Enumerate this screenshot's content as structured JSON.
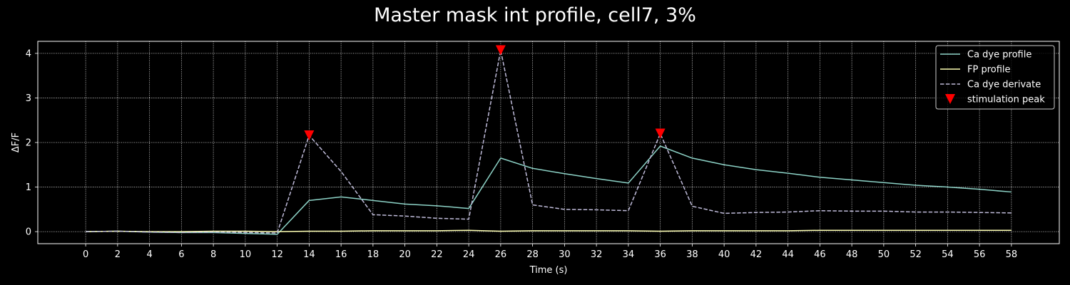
{
  "chart_data": {
    "type": "line",
    "title": "Master mask int profile, cell7, 3%",
    "xlabel": "Time (s)",
    "ylabel": "ΔF/F",
    "xlim": [
      -3,
      61
    ],
    "ylim": [
      -0.27,
      4.27
    ],
    "xticks": [
      0,
      2,
      4,
      6,
      8,
      10,
      12,
      14,
      16,
      18,
      20,
      22,
      24,
      26,
      28,
      30,
      32,
      34,
      36,
      38,
      40,
      42,
      44,
      46,
      48,
      50,
      52,
      54,
      56,
      58
    ],
    "yticks": [
      0,
      1,
      2,
      3,
      4
    ],
    "grid": true,
    "legend_position": "top-right",
    "x": [
      0,
      2,
      4,
      6,
      8,
      10,
      12,
      14,
      16,
      18,
      20,
      22,
      24,
      26,
      28,
      30,
      32,
      34,
      36,
      38,
      40,
      42,
      44,
      46,
      48,
      50,
      52,
      54,
      56,
      58
    ],
    "series": [
      {
        "name": "Ca dye profile",
        "color": "#8dd3c7",
        "style": "solid",
        "values": [
          0.0,
          0.01,
          -0.01,
          -0.02,
          -0.02,
          -0.04,
          -0.06,
          0.7,
          0.78,
          0.7,
          0.62,
          0.58,
          0.52,
          1.65,
          1.42,
          1.3,
          1.19,
          1.09,
          1.92,
          1.65,
          1.5,
          1.39,
          1.31,
          1.22,
          1.16,
          1.1,
          1.04,
          1.0,
          0.95,
          0.89
        ]
      },
      {
        "name": "FP profile",
        "color": "#feffb3",
        "style": "solid",
        "values": [
          0.0,
          0.01,
          0.0,
          0.0,
          0.01,
          0.01,
          0.0,
          0.01,
          0.01,
          0.02,
          0.02,
          0.02,
          0.03,
          0.01,
          0.02,
          0.02,
          0.02,
          0.02,
          0.01,
          0.02,
          0.02,
          0.02,
          0.02,
          0.03,
          0.03,
          0.03,
          0.03,
          0.03,
          0.03,
          0.03
        ]
      },
      {
        "name": "Ca dye derivate",
        "color": "#bfbbd9",
        "style": "dashed",
        "values": [
          0.0,
          0.01,
          -0.01,
          -0.02,
          -0.01,
          -0.02,
          -0.03,
          2.16,
          1.35,
          0.38,
          0.35,
          0.3,
          0.28,
          4.07,
          0.6,
          0.5,
          0.49,
          0.47,
          2.2,
          0.57,
          0.41,
          0.43,
          0.44,
          0.47,
          0.46,
          0.46,
          0.44,
          0.44,
          0.43,
          0.42
        ]
      }
    ],
    "markers": {
      "name": "stimulation peak",
      "color": "#ff0000",
      "shape": "triangle-down",
      "x": [
        14,
        26,
        36
      ],
      "y": [
        2.16,
        4.07,
        2.2
      ]
    }
  }
}
